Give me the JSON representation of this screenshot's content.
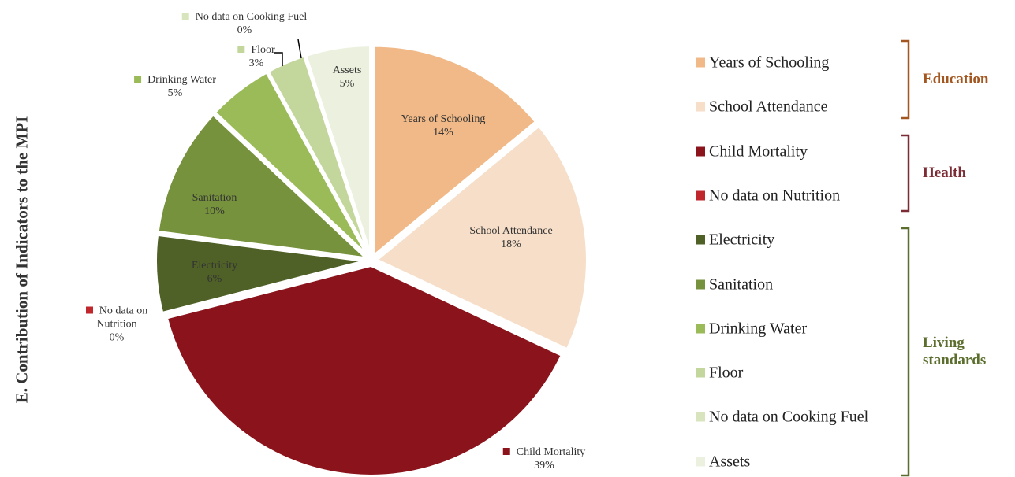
{
  "chart_data": {
    "type": "pie",
    "y_axis_label": "E. Contribution of Indicators to the MPI",
    "categories": [
      "Years of Schooling",
      "School Attendance",
      "Child Mortality",
      "No data on Nutrition",
      "Electricity",
      "Sanitation",
      "Drinking Water",
      "Floor",
      "No data on Cooking Fuel",
      "Assets"
    ],
    "values": [
      14,
      18,
      39,
      0,
      6,
      10,
      5,
      3,
      0,
      5
    ],
    "value_labels": [
      "14%",
      "18%",
      "39%",
      "0%",
      "6%",
      "10%",
      "5%",
      "3%",
      "0%",
      "5%"
    ],
    "colors": [
      "#f0b987",
      "#f6dec8",
      "#8b141c",
      "#c0272d",
      "#4f6127",
      "#76923c",
      "#9bbb59",
      "#c3d69b",
      "#d7e4bd",
      "#ebf1de"
    ],
    "groups": [
      {
        "name": "Education",
        "color": "#a3561f"
      },
      {
        "name": "Health",
        "color": "#7b2c34"
      },
      {
        "name": "Living standards",
        "color": "#5b6e2d"
      }
    ]
  }
}
